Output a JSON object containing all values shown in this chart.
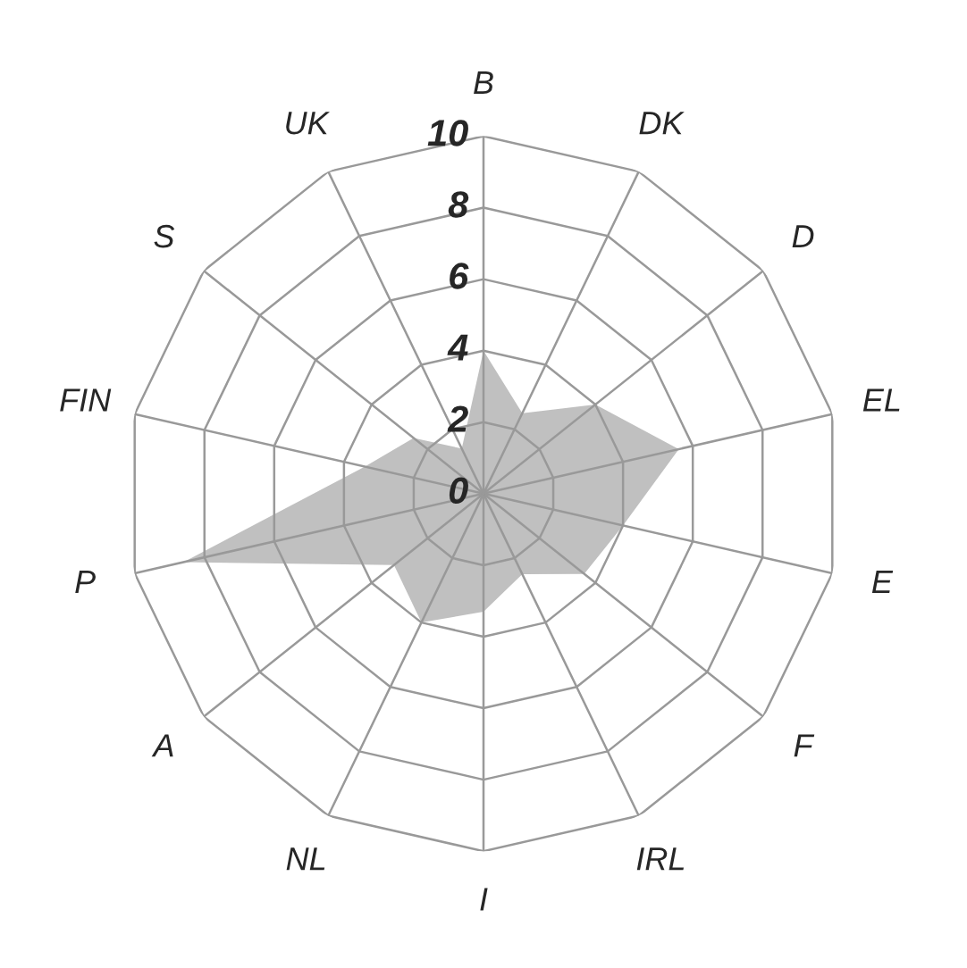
{
  "chart_data": {
    "type": "radar",
    "categories": [
      "B",
      "DK",
      "D",
      "EL",
      "E",
      "F",
      "IRL",
      "I",
      "NL",
      "A",
      "P",
      "FIN",
      "S",
      "UK"
    ],
    "series": [
      {
        "color": "#c0c0c0",
        "values": [
          4.0,
          2.5,
          4.0,
          5.6,
          4.0,
          3.6,
          2.5,
          3.3,
          4.0,
          3.2,
          8.6,
          3.4,
          2.5,
          1.4
        ]
      }
    ],
    "ylim": [
      0,
      10
    ],
    "yticks": [
      0,
      2,
      4,
      6,
      8,
      10
    ],
    "grid": true
  }
}
